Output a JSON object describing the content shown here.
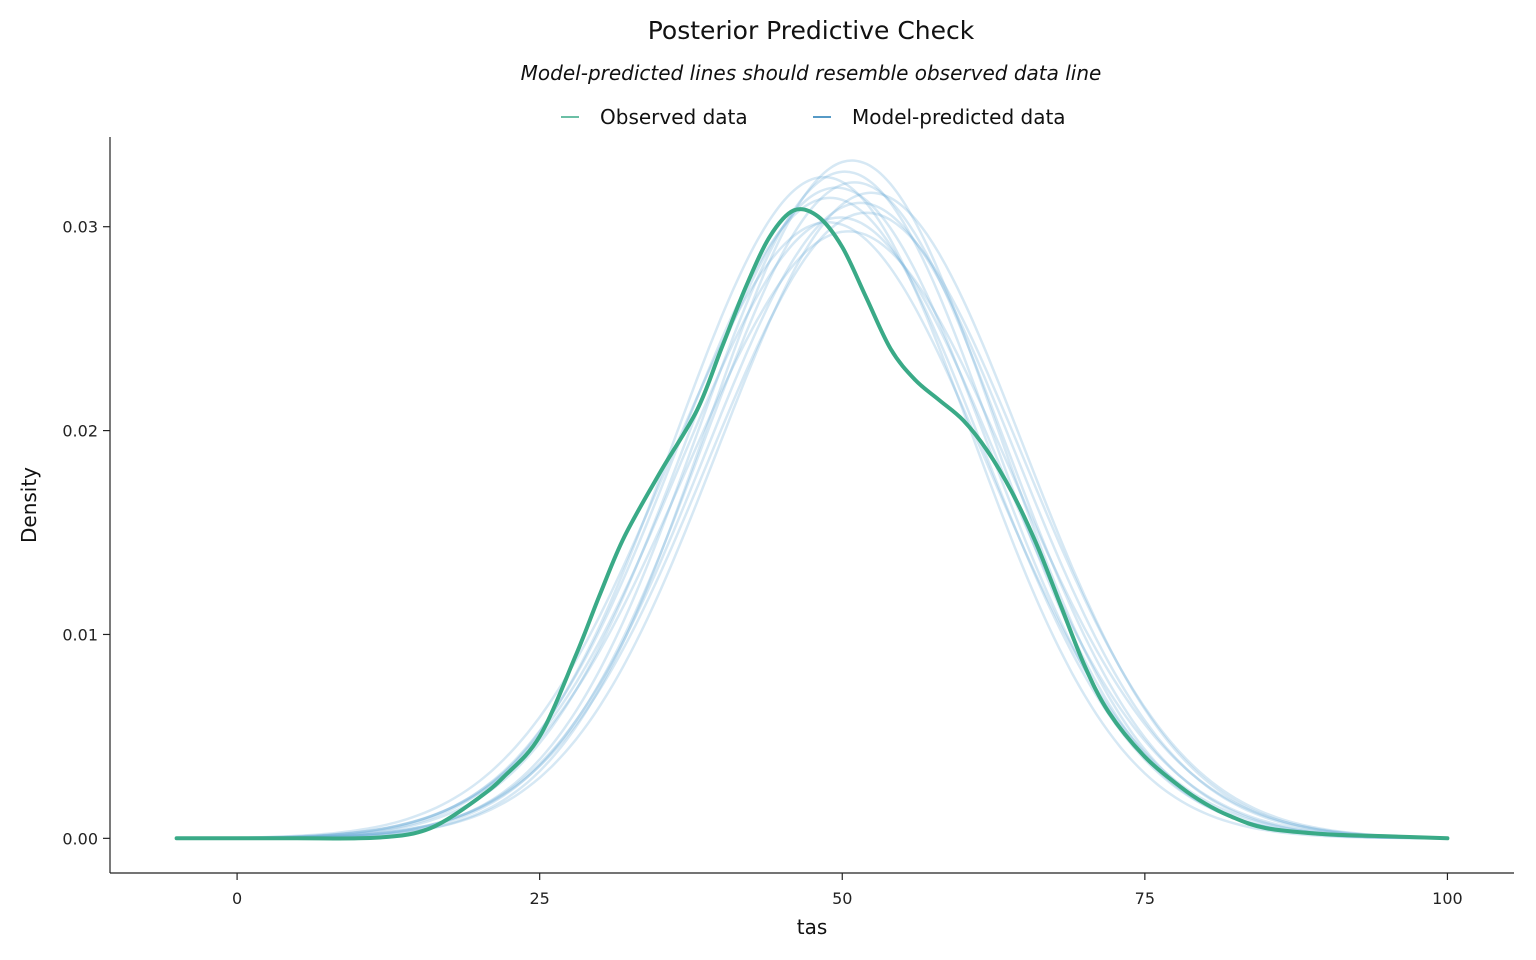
{
  "chart_data": {
    "type": "line",
    "title": "Posterior Predictive Check",
    "subtitle": "Model-predicted lines should resemble observed data line",
    "xlabel": "tas",
    "ylabel": "Density",
    "xlim": [
      -10.5,
      105.5
    ],
    "ylim": [
      -0.0017,
      0.0344
    ],
    "x_ticks": [
      0,
      25,
      50,
      75,
      100
    ],
    "x_tick_labels": [
      "0",
      "25",
      "50",
      "75",
      "100"
    ],
    "y_ticks": [
      0,
      0.01,
      0.02,
      0.03
    ],
    "y_tick_labels": [
      "0.00",
      "0.01",
      "0.02",
      "0.03"
    ],
    "grid": false,
    "legend_position": "top-center",
    "colors": {
      "observed": "#3aaa87",
      "predicted": "#1f78b4",
      "predicted_line": "#6aaed6"
    },
    "legend": [
      {
        "label": "Observed data",
        "color": "#3aaa87"
      },
      {
        "label": "Model-predicted data",
        "color": "#1f78b4"
      }
    ],
    "observed": {
      "x": [
        -5,
        0,
        5,
        10,
        13,
        15,
        17,
        20,
        22,
        25,
        28,
        30,
        32,
        35,
        38,
        40,
        42,
        44,
        46,
        48,
        50,
        52,
        54,
        56,
        58,
        60,
        62,
        64,
        66,
        68,
        70,
        72,
        75,
        78,
        80,
        82,
        85,
        90,
        95,
        100
      ],
      "y": [
        0,
        0,
        0,
        0.0,
        0.0001,
        0.0003,
        0.0008,
        0.002,
        0.003,
        0.005,
        0.009,
        0.012,
        0.0148,
        0.018,
        0.021,
        0.024,
        0.027,
        0.0295,
        0.0308,
        0.0305,
        0.029,
        0.0265,
        0.024,
        0.0225,
        0.0215,
        0.0205,
        0.019,
        0.017,
        0.0145,
        0.0115,
        0.0085,
        0.0062,
        0.004,
        0.0025,
        0.0017,
        0.0011,
        0.0005,
        0.0002,
        0.0001,
        0.0
      ]
    },
    "predicted_draws": [
      {
        "mean": 49.5,
        "sd": 12.5
      },
      {
        "mean": 50.8,
        "sd": 12.0
      },
      {
        "mean": 51.5,
        "sd": 12.8
      },
      {
        "mean": 48.8,
        "sd": 13.2
      },
      {
        "mean": 50.2,
        "sd": 12.2
      },
      {
        "mean": 52.0,
        "sd": 13.0
      },
      {
        "mean": 49.0,
        "sd": 12.7
      },
      {
        "mean": 50.5,
        "sd": 13.4
      },
      {
        "mean": 51.0,
        "sd": 12.4
      },
      {
        "mean": 49.8,
        "sd": 13.1
      },
      {
        "mean": 52.4,
        "sd": 12.6
      },
      {
        "mean": 48.5,
        "sd": 12.3
      }
    ]
  }
}
